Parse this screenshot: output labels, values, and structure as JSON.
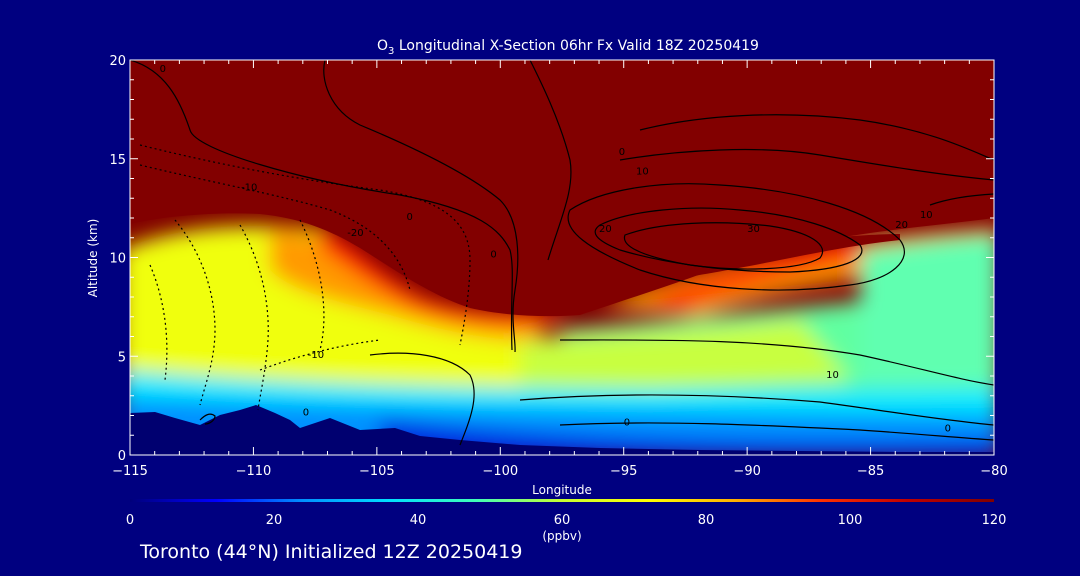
{
  "chart_data": {
    "type": "heatmap",
    "title_prefix": "O",
    "title_subscript": "3",
    "title_rest": " Longitudinal X-Section 06hr  Fx Valid 18Z 20250419",
    "xlabel": "Longitude",
    "ylabel": "Altitude (km)",
    "xlim": [
      -115,
      -80
    ],
    "ylim": [
      0,
      20
    ],
    "x_ticks": [
      -115,
      -110,
      -105,
      -100,
      -95,
      -90,
      -85,
      -80
    ],
    "x_tick_labels": [
      "−115",
      "−110",
      "−105",
      "−100",
      "−95",
      "−90",
      "−85",
      "−80"
    ],
    "y_ticks": [
      0,
      5,
      10,
      15,
      20
    ],
    "y_tick_labels": [
      "0",
      "5",
      "10",
      "15",
      "20"
    ],
    "colorbar": {
      "label": "(ppbv)",
      "range": [
        0,
        120
      ],
      "ticks": [
        0,
        20,
        40,
        60,
        80,
        100,
        120
      ],
      "tick_labels": [
        "0",
        "20",
        "40",
        "60",
        "80",
        "100",
        "120"
      ],
      "colors": [
        "#00007a",
        "#0000ff",
        "#0090ff",
        "#00e0ff",
        "#40ffb8",
        "#c8ff30",
        "#ffff00",
        "#ffb000",
        "#ff3000",
        "#c00000",
        "#800000"
      ]
    },
    "overlay_contours": {
      "variable": "anomaly",
      "labels_shown": [
        "0",
        "10",
        "20",
        "30",
        "-10",
        "-20"
      ],
      "label_positions": [
        {
          "text": "0",
          "lon": -113.8,
          "alt": 19.4
        },
        {
          "text": "-10",
          "lon": -110.5,
          "alt": 13.4
        },
        {
          "text": "-20",
          "lon": -106.2,
          "alt": 11.1
        },
        {
          "text": "0",
          "lon": -103.8,
          "alt": 11.9
        },
        {
          "text": "-10",
          "lon": -107.8,
          "alt": 4.9
        },
        {
          "text": "0",
          "lon": -108.0,
          "alt": 2.0
        },
        {
          "text": "0",
          "lon": -100.4,
          "alt": 10.0
        },
        {
          "text": "0",
          "lon": -95.2,
          "alt": 15.2
        },
        {
          "text": "10",
          "lon": -94.5,
          "alt": 14.2
        },
        {
          "text": "20",
          "lon": -96.0,
          "alt": 11.3
        },
        {
          "text": "30",
          "lon": -90.0,
          "alt": 11.3
        },
        {
          "text": "10",
          "lon": -83.0,
          "alt": 12.0
        },
        {
          "text": "20",
          "lon": -84.0,
          "alt": 11.5
        },
        {
          "text": "10",
          "lon": -86.8,
          "alt": 3.9
        },
        {
          "text": "0",
          "lon": -95.0,
          "alt": 1.5
        },
        {
          "text": "0",
          "lon": -82.0,
          "alt": 1.2
        }
      ]
    }
  },
  "footer": {
    "text": "Toronto (44°N) Initialized 12Z 20250419"
  },
  "colors": {
    "background": "#000080",
    "axes": "#ffffff",
    "contours": "#000000",
    "terrain": "#000070"
  }
}
